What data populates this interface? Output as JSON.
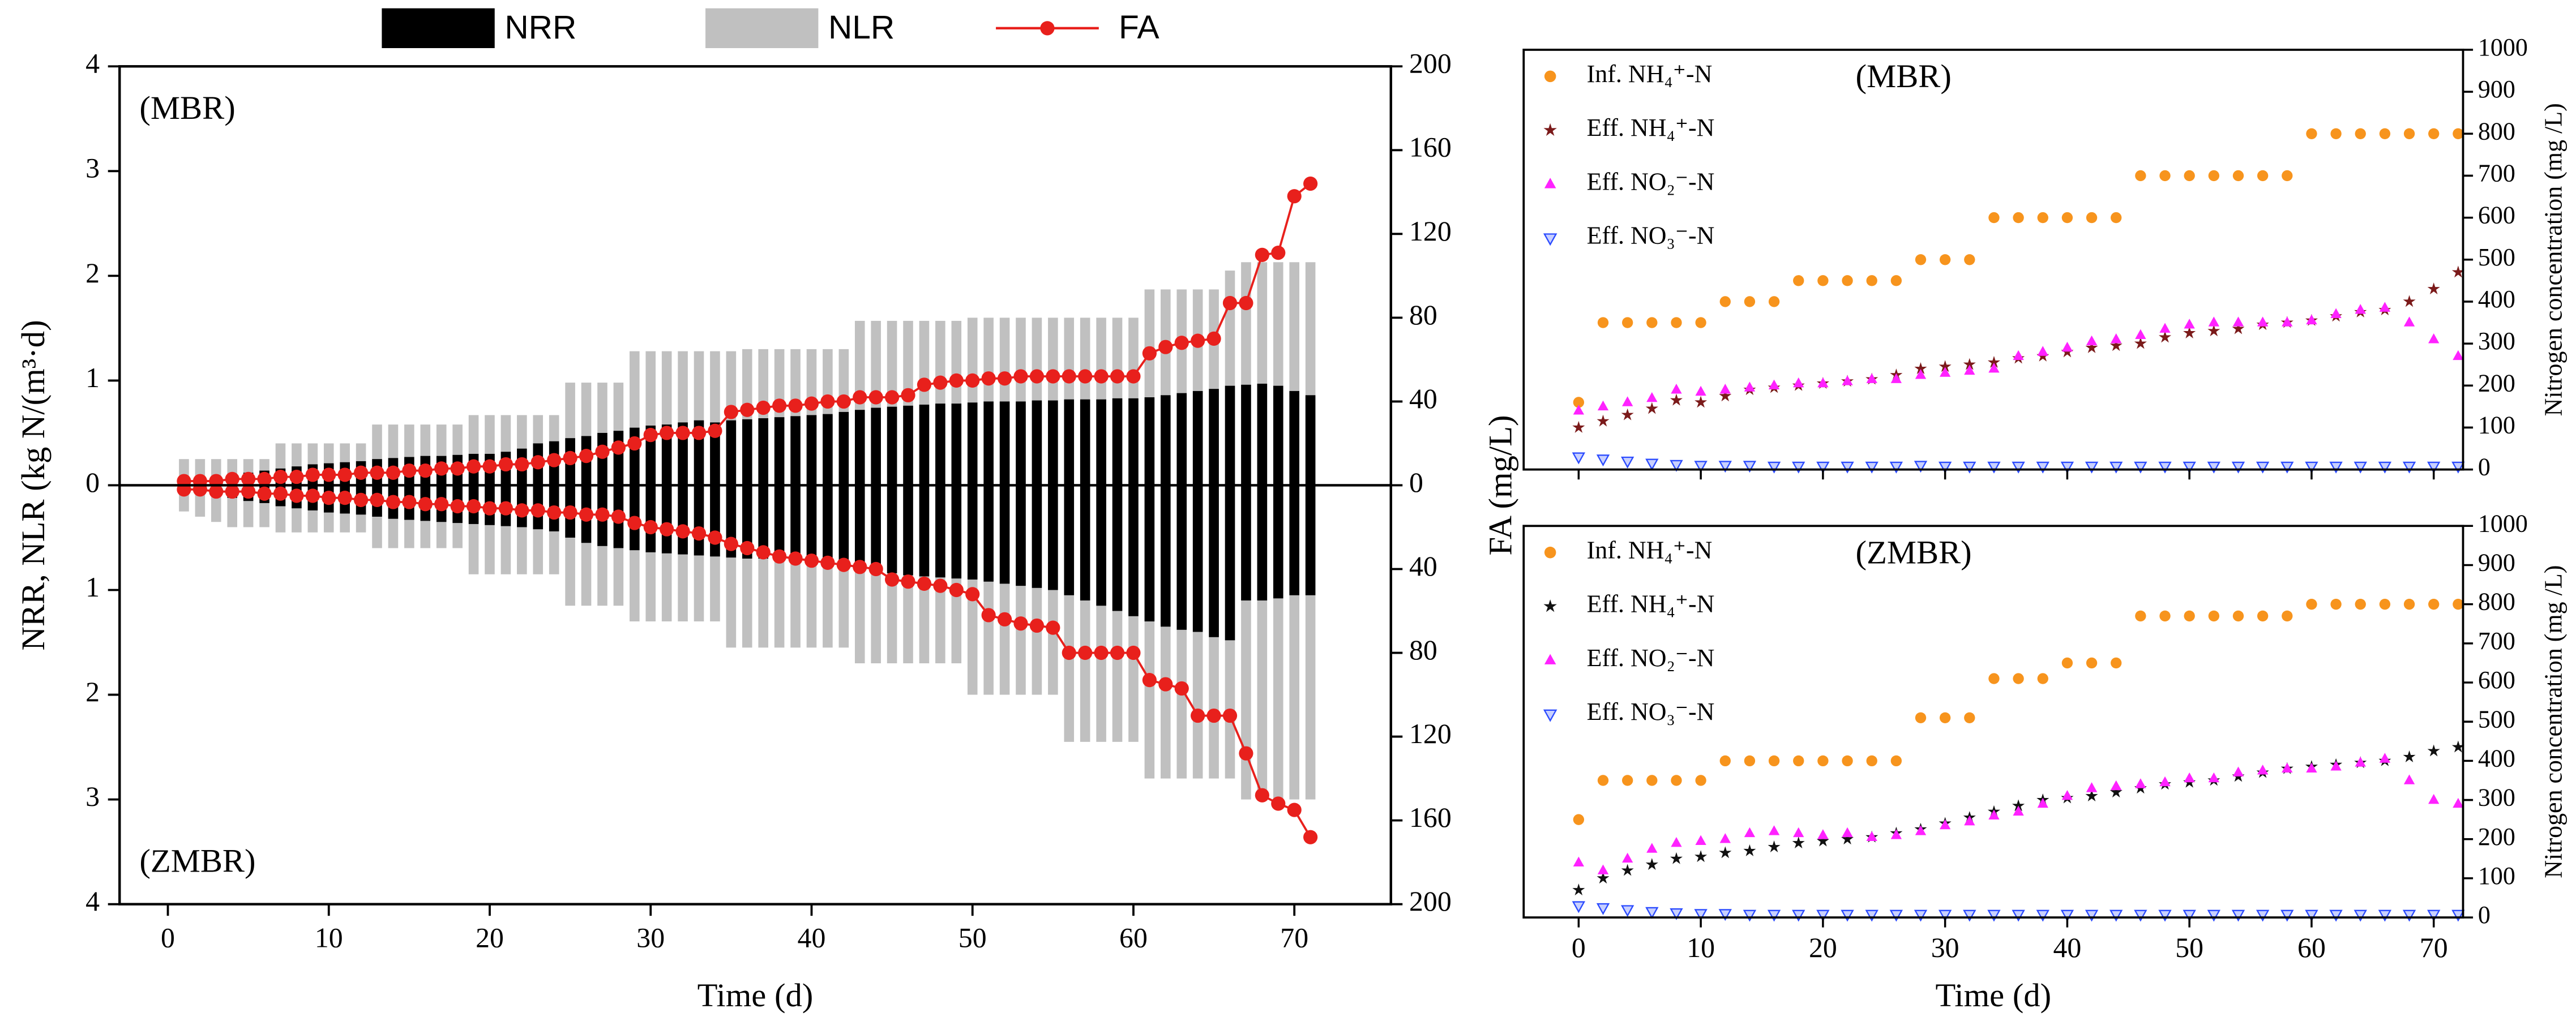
{
  "chart_data": [
    {
      "type": "bar",
      "xlabel": "Time (d)",
      "ylabel": "NRR, NLR (kg N/(m³·d)",
      "y2label": "FA (mg/L)",
      "annotations": [
        "(MBR)",
        "(ZMBR)"
      ],
      "xlim": [
        -3,
        76
      ],
      "xticks": [
        0,
        10,
        20,
        30,
        40,
        50,
        60,
        70
      ],
      "ylim": [
        -4,
        4
      ],
      "yticks": [
        {
          "value": -4,
          "label": "4"
        },
        {
          "value": -3,
          "label": "3"
        },
        {
          "value": -2,
          "label": "2"
        },
        {
          "value": -1,
          "label": "1"
        },
        0,
        1,
        2,
        3,
        4
      ],
      "y2lim": [
        -200,
        200
      ],
      "y2ticks": [
        {
          "value": -200,
          "label": "200"
        },
        {
          "value": -160,
          "label": "160"
        },
        {
          "value": -120,
          "label": "120"
        },
        {
          "value": -80,
          "label": "80"
        },
        {
          "value": -40,
          "label": "40"
        },
        0,
        40,
        80,
        120,
        160,
        200
      ],
      "x": [
        1,
        2,
        3,
        4,
        5,
        6,
        7,
        8,
        9,
        10,
        11,
        12,
        13,
        14,
        15,
        16,
        17,
        18,
        19,
        20,
        21,
        22,
        23,
        24,
        25,
        26,
        27,
        28,
        29,
        30,
        31,
        32,
        33,
        34,
        35,
        36,
        37,
        38,
        39,
        40,
        41,
        42,
        43,
        44,
        45,
        46,
        47,
        48,
        49,
        50,
        51,
        52,
        53,
        54,
        55,
        56,
        57,
        58,
        59,
        60,
        61,
        62,
        63,
        64,
        65,
        66,
        67,
        68,
        69,
        70,
        71
      ],
      "series": [
        {
          "name": "NRR",
          "color": "#000000",
          "values": [
            0.05,
            0.07,
            0.08,
            0.1,
            0.12,
            0.14,
            0.16,
            0.18,
            0.2,
            0.21,
            0.22,
            0.23,
            0.25,
            0.26,
            0.27,
            0.28,
            0.28,
            0.29,
            0.3,
            0.3,
            0.32,
            0.35,
            0.4,
            0.42,
            0.45,
            0.47,
            0.5,
            0.52,
            0.55,
            0.57,
            0.58,
            0.6,
            0.62,
            0.6,
            0.62,
            0.63,
            0.64,
            0.65,
            0.66,
            0.67,
            0.68,
            0.7,
            0.72,
            0.74,
            0.75,
            0.76,
            0.77,
            0.78,
            0.78,
            0.79,
            0.8,
            0.8,
            0.8,
            0.81,
            0.81,
            0.82,
            0.82,
            0.82,
            0.83,
            0.83,
            0.84,
            0.86,
            0.88,
            0.9,
            0.92,
            0.95,
            0.96,
            0.97,
            0.95,
            0.9,
            0.86
          ]
        },
        {
          "name": "NLR",
          "color": "#c0c0c0",
          "values": [
            0.25,
            0.25,
            0.25,
            0.25,
            0.25,
            0.25,
            0.4,
            0.4,
            0.4,
            0.4,
            0.4,
            0.4,
            0.58,
            0.58,
            0.58,
            0.58,
            0.58,
            0.58,
            0.67,
            0.67,
            0.67,
            0.67,
            0.67,
            0.67,
            0.98,
            0.98,
            0.98,
            0.98,
            1.28,
            1.28,
            1.28,
            1.28,
            1.28,
            1.28,
            1.28,
            1.3,
            1.3,
            1.3,
            1.3,
            1.3,
            1.3,
            1.3,
            1.57,
            1.57,
            1.57,
            1.57,
            1.57,
            1.57,
            1.57,
            1.6,
            1.6,
            1.6,
            1.6,
            1.6,
            1.6,
            1.6,
            1.6,
            1.6,
            1.6,
            1.6,
            1.87,
            1.87,
            1.87,
            1.87,
            1.87,
            2.05,
            2.13,
            2.13,
            2.13,
            2.13,
            2.13
          ]
        },
        {
          "name": "FA",
          "type": "line",
          "axis": "y2",
          "color": "#e8201c",
          "values": [
            2,
            2,
            2,
            3,
            3,
            3,
            4,
            4,
            5,
            5,
            5,
            6,
            6,
            6,
            7,
            7,
            8,
            8,
            9,
            9,
            10,
            10,
            11,
            12,
            13,
            14,
            16,
            18,
            20,
            24,
            25,
            25,
            25,
            26,
            35,
            36,
            37,
            38,
            38,
            39,
            40,
            40,
            42,
            42,
            42,
            43,
            48,
            49,
            50,
            50,
            51,
            51,
            52,
            52,
            52,
            52,
            52,
            52,
            52,
            52,
            63,
            66,
            68,
            69,
            70,
            87,
            87,
            110,
            111,
            138,
            144
          ]
        },
        {
          "color": "#000000",
          "values": [
            -0.05,
            -0.08,
            -0.1,
            -0.12,
            -0.15,
            -0.17,
            -0.2,
            -0.22,
            -0.24,
            -0.26,
            -0.27,
            -0.28,
            -0.3,
            -0.32,
            -0.33,
            -0.34,
            -0.35,
            -0.36,
            -0.37,
            -0.38,
            -0.39,
            -0.4,
            -0.42,
            -0.44,
            -0.5,
            -0.55,
            -0.58,
            -0.6,
            -0.62,
            -0.64,
            -0.65,
            -0.66,
            -0.67,
            -0.68,
            -0.69,
            -0.7,
            -0.7,
            -0.71,
            -0.72,
            -0.73,
            -0.75,
            -0.78,
            -0.8,
            -0.82,
            -0.84,
            -0.86,
            -0.87,
            -0.88,
            -0.89,
            -0.9,
            -0.92,
            -0.94,
            -0.96,
            -0.98,
            -1.0,
            -1.05,
            -1.1,
            -1.15,
            -1.2,
            -1.25,
            -1.3,
            -1.35,
            -1.38,
            -1.4,
            -1.45,
            -1.48,
            -1.1,
            -1.1,
            -1.08,
            -1.05,
            -1.05
          ]
        },
        {
          "color": "#c0c0c0",
          "values": [
            -0.25,
            -0.3,
            -0.35,
            -0.4,
            -0.4,
            -0.4,
            -0.45,
            -0.45,
            -0.45,
            -0.45,
            -0.45,
            -0.45,
            -0.6,
            -0.6,
            -0.6,
            -0.6,
            -0.6,
            -0.6,
            -0.85,
            -0.85,
            -0.85,
            -0.85,
            -0.85,
            -0.85,
            -1.15,
            -1.15,
            -1.15,
            -1.15,
            -1.3,
            -1.3,
            -1.3,
            -1.3,
            -1.3,
            -1.3,
            -1.55,
            -1.55,
            -1.55,
            -1.55,
            -1.55,
            -1.55,
            -1.55,
            -1.55,
            -1.7,
            -1.7,
            -1.7,
            -1.7,
            -1.7,
            -1.7,
            -1.7,
            -2.0,
            -2.0,
            -2.0,
            -2.0,
            -2.0,
            -2.0,
            -2.45,
            -2.45,
            -2.45,
            -2.45,
            -2.45,
            -2.8,
            -2.8,
            -2.8,
            -2.8,
            -2.8,
            -2.8,
            -3.0,
            -3.0,
            -3.0,
            -3.0,
            -3.0
          ]
        },
        {
          "type": "line",
          "axis": "y2",
          "color": "#e8201c",
          "values": [
            -2,
            -2,
            -3,
            -3,
            -3,
            -4,
            -4,
            -5,
            -5,
            -6,
            -6,
            -7,
            -7,
            -8,
            -8,
            -9,
            -9,
            -10,
            -10,
            -11,
            -11,
            -12,
            -12,
            -13,
            -13,
            -14,
            -14,
            -15,
            -18,
            -20,
            -21,
            -22,
            -23,
            -25,
            -28,
            -30,
            -32,
            -34,
            -35,
            -36,
            -37,
            -38,
            -39,
            -40,
            -45,
            -46,
            -47,
            -48,
            -50,
            -52,
            -62,
            -64,
            -66,
            -67,
            -68,
            -80,
            -80,
            -80,
            -80,
            -80,
            -93,
            -95,
            -97,
            -110,
            -110,
            -110,
            -128,
            -148,
            -152,
            -155,
            -168
          ]
        }
      ]
    },
    {
      "type": "scatter",
      "title": "(MBR)",
      "y2label": "Nitrogen concentration (mg /L)",
      "xlim": [
        -4.5,
        72.4
      ],
      "xticks": [
        0,
        10,
        20,
        30,
        40,
        50,
        60,
        70
      ],
      "y2lim": [
        0,
        1000
      ],
      "y2ticks": [
        0,
        100,
        200,
        300,
        400,
        500,
        600,
        700,
        800,
        900,
        1000
      ],
      "x": [
        0,
        2,
        4,
        6,
        8,
        10,
        12,
        14,
        16,
        18,
        20,
        22,
        24,
        26,
        28,
        30,
        32,
        34,
        36,
        38,
        40,
        42,
        44,
        46,
        48,
        50,
        52,
        54,
        56,
        58,
        60,
        62,
        64,
        66,
        68,
        70,
        72
      ],
      "series": [
        {
          "name": "Inf. NH₄⁺-N",
          "marker": "circle",
          "color": "#f7941d",
          "values": [
            160,
            350,
            350,
            350,
            350,
            350,
            400,
            400,
            400,
            450,
            450,
            450,
            450,
            450,
            500,
            500,
            500,
            600,
            600,
            600,
            600,
            600,
            600,
            700,
            700,
            700,
            700,
            700,
            700,
            700,
            800,
            800,
            800,
            800,
            800,
            800,
            800
          ]
        },
        {
          "name": "Eff. NH₄⁺-N",
          "marker": "star",
          "color": "#7b1a1a",
          "values": [
            100,
            115,
            130,
            145,
            165,
            160,
            175,
            190,
            195,
            200,
            205,
            210,
            215,
            225,
            240,
            245,
            250,
            255,
            265,
            270,
            280,
            290,
            295,
            300,
            315,
            325,
            330,
            335,
            345,
            350,
            355,
            365,
            375,
            380,
            400,
            430,
            470
          ]
        },
        {
          "name": "Eff. NO₂⁻-N",
          "marker": "triangle",
          "color": "#ff22ff",
          "values": [
            140,
            150,
            160,
            170,
            190,
            185,
            190,
            195,
            200,
            205,
            205,
            210,
            215,
            215,
            225,
            230,
            235,
            240,
            270,
            280,
            290,
            305,
            310,
            320,
            335,
            345,
            350,
            350,
            350,
            350,
            355,
            370,
            380,
            385,
            350,
            310,
            270
          ]
        },
        {
          "name": "Eff. NO₃⁻-N",
          "marker": "triangle-down",
          "color": "#2b4bff",
          "values": [
            30,
            25,
            20,
            15,
            12,
            10,
            10,
            10,
            8,
            8,
            8,
            8,
            8,
            8,
            10,
            8,
            8,
            8,
            8,
            8,
            8,
            8,
            8,
            8,
            8,
            8,
            8,
            8,
            8,
            8,
            8,
            8,
            8,
            8,
            8,
            8,
            8
          ]
        }
      ]
    },
    {
      "type": "scatter",
      "title": "(ZMBR)",
      "xlabel": "Time (d)",
      "y2label": "Nitrogen concentration (mg /L)",
      "xlim": [
        -4.5,
        72.4
      ],
      "xticks": [
        0,
        10,
        20,
        30,
        40,
        50,
        60,
        70
      ],
      "y2lim": [
        0,
        1000
      ],
      "y2ticks": [
        0,
        100,
        200,
        300,
        400,
        500,
        600,
        700,
        800,
        900,
        1000
      ],
      "x": [
        0,
        2,
        4,
        6,
        8,
        10,
        12,
        14,
        16,
        18,
        20,
        22,
        24,
        26,
        28,
        30,
        32,
        34,
        36,
        38,
        40,
        42,
        44,
        46,
        48,
        50,
        52,
        54,
        56,
        58,
        60,
        62,
        64,
        66,
        68,
        70,
        72
      ],
      "series": [
        {
          "name": "Inf. NH₄⁺-N",
          "marker": "circle",
          "color": "#f7941d",
          "values": [
            250,
            350,
            350,
            350,
            350,
            350,
            400,
            400,
            400,
            400,
            400,
            400,
            400,
            400,
            510,
            510,
            510,
            610,
            610,
            610,
            650,
            650,
            650,
            770,
            770,
            770,
            770,
            770,
            770,
            770,
            800,
            800,
            800,
            800,
            800,
            800,
            800
          ]
        },
        {
          "name": "Eff. NH₄⁺-N",
          "marker": "star",
          "color": "#111111",
          "values": [
            70,
            100,
            120,
            135,
            150,
            155,
            165,
            170,
            180,
            190,
            195,
            200,
            205,
            215,
            225,
            240,
            255,
            270,
            285,
            300,
            305,
            310,
            320,
            330,
            340,
            345,
            350,
            360,
            370,
            380,
            385,
            390,
            395,
            400,
            410,
            425,
            435
          ]
        },
        {
          "name": "Eff. NO₂⁻-N",
          "marker": "triangle",
          "color": "#ff22ff",
          "values": [
            140,
            120,
            150,
            175,
            190,
            195,
            200,
            215,
            220,
            215,
            210,
            215,
            205,
            210,
            220,
            235,
            245,
            260,
            270,
            290,
            310,
            330,
            335,
            340,
            345,
            355,
            355,
            370,
            375,
            380,
            380,
            385,
            395,
            405,
            350,
            300,
            290
          ]
        },
        {
          "name": "Eff. NO₃⁻-N",
          "marker": "triangle-down",
          "color": "#2b4bff",
          "values": [
            30,
            25,
            20,
            15,
            12,
            10,
            10,
            8,
            8,
            8,
            8,
            8,
            8,
            8,
            8,
            8,
            8,
            8,
            8,
            8,
            8,
            8,
            8,
            8,
            8,
            8,
            8,
            8,
            8,
            8,
            8,
            8,
            8,
            8,
            8,
            8,
            8
          ]
        }
      ]
    }
  ]
}
